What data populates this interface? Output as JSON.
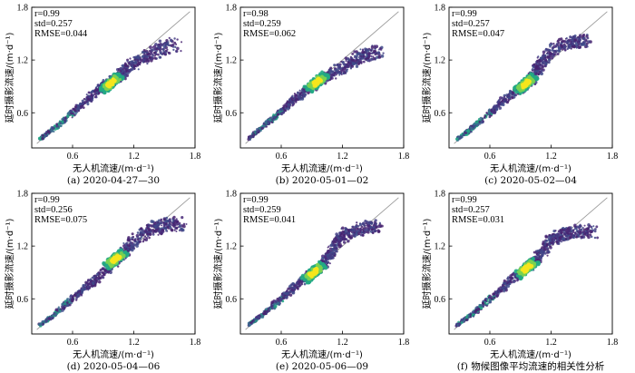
{
  "colors": {
    "ridge_dark": "#46226f",
    "ridge_mid": "#3a6f8f",
    "ridge_teal": "#22a884",
    "ridge_green": "#7ad151",
    "core_yellow": "#f6e61d",
    "reference_line": "#9a9a9a",
    "axis": "#000000"
  },
  "chart_data": [
    {
      "type": "scatter",
      "caption": "(a) 2020-04-27—30",
      "xlabel": "无人机流速/(m·d⁻¹)",
      "ylabel": "延时摄影流速/(m·d⁻¹)",
      "stats": {
        "r": "r=0.99",
        "std": "std=0.257",
        "rmse": "RMSE=0.044"
      },
      "xlim": [
        0.2,
        1.8
      ],
      "ylim": [
        0.2,
        1.8
      ],
      "xticks": [
        "0.6",
        "1.2",
        "1.8"
      ],
      "yticks": [
        "0.6",
        "1.2",
        "1.8"
      ],
      "ridge": [
        [
          0.28,
          0.3
        ],
        [
          0.4,
          0.4
        ],
        [
          0.55,
          0.55
        ],
        [
          0.7,
          0.7
        ],
        [
          0.85,
          0.86
        ],
        [
          0.95,
          0.94
        ],
        [
          1.05,
          1.0
        ],
        [
          1.15,
          1.12
        ],
        [
          1.3,
          1.22
        ],
        [
          1.45,
          1.32
        ],
        [
          1.6,
          1.38
        ]
      ],
      "core": [
        0.98,
        0.94
      ]
    },
    {
      "type": "scatter",
      "caption": "(b) 2020-05-01—02",
      "xlabel": "无人机流速/(m·d⁻¹)",
      "ylabel": "延时摄影流速/(m·d⁻¹)",
      "stats": {
        "r": "r=0.98",
        "std": "std=0.259",
        "rmse": "RMSE=0.062"
      },
      "xlim": [
        0.2,
        1.8
      ],
      "ylim": [
        0.2,
        1.8
      ],
      "xticks": [
        "0.6",
        "1.2",
        "1.8"
      ],
      "yticks": [
        "0.6",
        "1.2",
        "1.8"
      ],
      "ridge": [
        [
          0.28,
          0.3
        ],
        [
          0.4,
          0.42
        ],
        [
          0.55,
          0.56
        ],
        [
          0.7,
          0.72
        ],
        [
          0.85,
          0.86
        ],
        [
          0.98,
          0.96
        ],
        [
          1.1,
          1.05
        ],
        [
          1.25,
          1.15
        ],
        [
          1.4,
          1.25
        ],
        [
          1.55,
          1.3
        ]
      ],
      "core": [
        0.95,
        0.95
      ]
    },
    {
      "type": "scatter",
      "caption": "(c) 2020-05-02—04",
      "xlabel": "无人机流速/(m·d⁻¹)",
      "ylabel": "延时摄影流速/(m·d⁻¹)",
      "stats": {
        "r": "r=0.99",
        "std": "std=0.257",
        "rmse": "RMSE=0.047"
      },
      "xlim": [
        0.2,
        1.8
      ],
      "ylim": [
        0.2,
        1.8
      ],
      "xticks": [
        "0.6",
        "1.2",
        "1.8"
      ],
      "yticks": [
        "0.6",
        "1.2",
        "1.8"
      ],
      "ridge": [
        [
          0.28,
          0.3
        ],
        [
          0.4,
          0.4
        ],
        [
          0.55,
          0.55
        ],
        [
          0.7,
          0.7
        ],
        [
          0.85,
          0.84
        ],
        [
          0.98,
          0.93
        ],
        [
          1.05,
          1.05
        ],
        [
          1.12,
          1.2
        ],
        [
          1.25,
          1.35
        ],
        [
          1.4,
          1.4
        ],
        [
          1.55,
          1.42
        ]
      ],
      "core": [
        0.95,
        0.93
      ]
    },
    {
      "type": "scatter",
      "caption": "(d) 2020-05-04—06",
      "xlabel": "无人机流速/(m·d⁻¹)",
      "ylabel": "延时摄影流速/(m·d⁻¹)",
      "stats": {
        "r": "r=0.99",
        "std": "std=0.256",
        "rmse": "RMSE=0.075"
      },
      "xlim": [
        0.2,
        1.8
      ],
      "ylim": [
        0.2,
        1.8
      ],
      "xticks": [
        "0.6",
        "1.2",
        "1.8"
      ],
      "yticks": [
        "0.6",
        "1.2",
        "1.8"
      ],
      "ridge": [
        [
          0.28,
          0.3
        ],
        [
          0.4,
          0.4
        ],
        [
          0.55,
          0.55
        ],
        [
          0.7,
          0.7
        ],
        [
          0.85,
          0.85
        ],
        [
          1.0,
          1.0
        ],
        [
          1.1,
          1.12
        ],
        [
          1.2,
          1.25
        ],
        [
          1.35,
          1.38
        ],
        [
          1.5,
          1.44
        ],
        [
          1.65,
          1.45
        ]
      ],
      "core": [
        1.02,
        1.05
      ]
    },
    {
      "type": "scatter",
      "caption": "(e) 2020-05-06—09",
      "xlabel": "无人机流速/(m·d⁻¹)",
      "ylabel": "延时摄影流速/(m·d⁻¹)",
      "stats": {
        "r": "r=0.99",
        "std": "std=0.259",
        "rmse": "RMSE=0.041"
      },
      "xlim": [
        0.2,
        1.8
      ],
      "ylim": [
        0.2,
        1.8
      ],
      "xticks": [
        "0.6",
        "1.2",
        "1.8"
      ],
      "yticks": [
        "0.6",
        "1.2",
        "1.8"
      ],
      "ridge": [
        [
          0.28,
          0.3
        ],
        [
          0.4,
          0.4
        ],
        [
          0.55,
          0.55
        ],
        [
          0.7,
          0.7
        ],
        [
          0.85,
          0.85
        ],
        [
          0.98,
          0.95
        ],
        [
          1.08,
          1.1
        ],
        [
          1.15,
          1.25
        ],
        [
          1.25,
          1.35
        ],
        [
          1.4,
          1.4
        ],
        [
          1.55,
          1.42
        ]
      ],
      "core": [
        0.92,
        0.9
      ]
    },
    {
      "type": "scatter",
      "caption": "(f) 物候图像平均流速的相关性分析",
      "xlabel": "无人机流速/(m·d⁻¹)",
      "ylabel": "延时摄影流速/(m·d⁻¹)",
      "stats": {
        "r": "r=0.99",
        "std": "std=0.257",
        "rmse": "RMSE=0.031"
      },
      "xlim": [
        0.2,
        1.8
      ],
      "ylim": [
        0.2,
        1.8
      ],
      "xticks": [
        "0.6",
        "1.2",
        "1.8"
      ],
      "yticks": [
        "0.6",
        "1.2",
        "1.8"
      ],
      "ridge": [
        [
          0.28,
          0.3
        ],
        [
          0.4,
          0.4
        ],
        [
          0.55,
          0.55
        ],
        [
          0.7,
          0.7
        ],
        [
          0.85,
          0.85
        ],
        [
          0.98,
          0.96
        ],
        [
          1.08,
          1.08
        ],
        [
          1.18,
          1.25
        ],
        [
          1.3,
          1.33
        ],
        [
          1.45,
          1.36
        ],
        [
          1.62,
          1.37
        ]
      ],
      "core": [
        0.96,
        0.95
      ]
    }
  ]
}
